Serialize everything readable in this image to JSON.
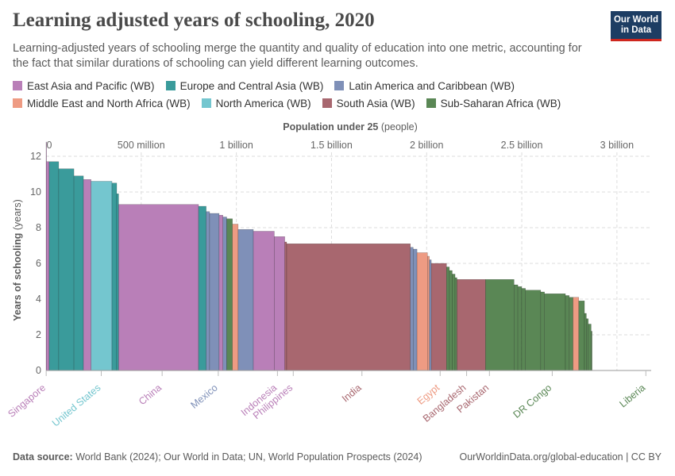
{
  "header": {
    "title": "Learning adjusted years of schooling, 2020",
    "subtitle": "Learning-adjusted years of schooling merge the quantity and quality of education into one metric, accounting for the fact that similar durations of schooling can yield different learning outcomes.",
    "logo_line1": "Our World",
    "logo_line2": "in Data"
  },
  "legend": [
    {
      "name": "East Asia and Pacific (WB)",
      "color": "#b97fb8"
    },
    {
      "name": "Europe and Central Asia (WB)",
      "color": "#3a9b9b"
    },
    {
      "name": "Latin America and Caribbean (WB)",
      "color": "#7f90b8"
    },
    {
      "name": "Middle East and North Africa (WB)",
      "color": "#ee9b83"
    },
    {
      "name": "North America (WB)",
      "color": "#74c6cf"
    },
    {
      "name": "South Asia (WB)",
      "color": "#a8676f"
    },
    {
      "name": "Sub-Saharan Africa (WB)",
      "color": "#5a8755"
    }
  ],
  "chart_data": {
    "type": "variable-width bar (marimekko)",
    "title": "Learning adjusted years of schooling, 2020",
    "xlabel_bold": "Population under 25",
    "xlabel_unit": "(people)",
    "ylabel_bold": "Years of schooling",
    "ylabel_unit": "(years)",
    "xlim": [
      0,
      3180000000
    ],
    "ylim": [
      0,
      12
    ],
    "x_ticks": [
      {
        "value": 0,
        "label": "0"
      },
      {
        "value": 500000000,
        "label": "500 million"
      },
      {
        "value": 1000000000,
        "label": "1 billion"
      },
      {
        "value": 1500000000,
        "label": "1.5 billion"
      },
      {
        "value": 2000000000,
        "label": "2 billion"
      },
      {
        "value": 2500000000,
        "label": "2.5 billion"
      },
      {
        "value": 3000000000,
        "label": "3 billion"
      }
    ],
    "y_ticks": [
      0,
      2,
      4,
      6,
      8,
      10,
      12
    ],
    "grid": true,
    "bars": [
      {
        "region": "East Asia and Pacific (WB)",
        "value": 12.8,
        "pop": 1400000
      },
      {
        "region": "East Asia and Pacific (WB)",
        "value": 11.7,
        "pop": 15000000
      },
      {
        "region": "Europe and Central Asia (WB)",
        "value": 11.7,
        "pop": 50000000
      },
      {
        "region": "Europe and Central Asia (WB)",
        "value": 11.3,
        "pop": 80000000
      },
      {
        "region": "Europe and Central Asia (WB)",
        "value": 10.9,
        "pop": 50000000
      },
      {
        "region": "East Asia and Pacific (WB)",
        "value": 10.7,
        "pop": 40000000
      },
      {
        "region": "North America (WB)",
        "value": 10.6,
        "pop": 110000000
      },
      {
        "region": "Europe and Central Asia (WB)",
        "value": 10.5,
        "pop": 25000000
      },
      {
        "region": "Europe and Central Asia (WB)",
        "value": 9.9,
        "pop": 10000000
      },
      {
        "region": "East Asia and Pacific (WB)",
        "value": 9.3,
        "pop": 420000000
      },
      {
        "region": "Europe and Central Asia (WB)",
        "value": 9.2,
        "pop": 40000000
      },
      {
        "region": "Latin America and Caribbean (WB)",
        "value": 8.9,
        "pop": 18000000
      },
      {
        "region": "Latin America and Caribbean (WB)",
        "value": 8.8,
        "pop": 50000000
      },
      {
        "region": "East Asia and Pacific (WB)",
        "value": 8.7,
        "pop": 20000000
      },
      {
        "region": "Latin America and Caribbean (WB)",
        "value": 8.6,
        "pop": 20000000
      },
      {
        "region": "Sub-Saharan Africa (WB)",
        "value": 8.5,
        "pop": 30000000
      },
      {
        "region": "Middle East and North Africa (WB)",
        "value": 8.2,
        "pop": 30000000
      },
      {
        "region": "Latin America and Caribbean (WB)",
        "value": 7.9,
        "pop": 80000000
      },
      {
        "region": "East Asia and Pacific (WB)",
        "value": 7.8,
        "pop": 110000000
      },
      {
        "region": "East Asia and Pacific (WB)",
        "value": 7.5,
        "pop": 55000000
      },
      {
        "region": "South Asia (WB)",
        "value": 7.2,
        "pop": 10000000
      },
      {
        "region": "South Asia (WB)",
        "value": 7.1,
        "pop": 650000000
      },
      {
        "region": "Latin America and Caribbean (WB)",
        "value": 6.9,
        "pop": 15000000
      },
      {
        "region": "Latin America and Caribbean (WB)",
        "value": 6.8,
        "pop": 20000000
      },
      {
        "region": "Middle East and North Africa (WB)",
        "value": 6.6,
        "pop": 55000000
      },
      {
        "region": "Middle East and North Africa (WB)",
        "value": 6.4,
        "pop": 10000000
      },
      {
        "region": "Latin America and Caribbean (WB)",
        "value": 6.2,
        "pop": 10000000
      },
      {
        "region": "South Asia (WB)",
        "value": 6.0,
        "pop": 80000000
      },
      {
        "region": "Sub-Saharan Africa (WB)",
        "value": 5.8,
        "pop": 15000000
      },
      {
        "region": "Sub-Saharan Africa (WB)",
        "value": 5.6,
        "pop": 15000000
      },
      {
        "region": "Sub-Saharan Africa (WB)",
        "value": 5.4,
        "pop": 15000000
      },
      {
        "region": "Sub-Saharan Africa (WB)",
        "value": 5.2,
        "pop": 10000000
      },
      {
        "region": "South Asia (WB)",
        "value": 5.1,
        "pop": 150000000
      },
      {
        "region": "Sub-Saharan Africa (WB)",
        "value": 5.1,
        "pop": 150000000
      },
      {
        "region": "Sub-Saharan Africa (WB)",
        "value": 4.8,
        "pop": 20000000
      },
      {
        "region": "Sub-Saharan Africa (WB)",
        "value": 4.7,
        "pop": 20000000
      },
      {
        "region": "Sub-Saharan Africa (WB)",
        "value": 4.6,
        "pop": 20000000
      },
      {
        "region": "Sub-Saharan Africa (WB)",
        "value": 4.5,
        "pop": 80000000
      },
      {
        "region": "Sub-Saharan Africa (WB)",
        "value": 4.4,
        "pop": 20000000
      },
      {
        "region": "Sub-Saharan Africa (WB)",
        "value": 4.3,
        "pop": 110000000
      },
      {
        "region": "Sub-Saharan Africa (WB)",
        "value": 4.2,
        "pop": 20000000
      },
      {
        "region": "Sub-Saharan Africa (WB)",
        "value": 4.1,
        "pop": 20000000
      },
      {
        "region": "Middle East and North Africa (WB)",
        "value": 4.1,
        "pop": 30000000
      },
      {
        "region": "Sub-Saharan Africa (WB)",
        "value": 3.9,
        "pop": 30000000
      },
      {
        "region": "Sub-Saharan Africa (WB)",
        "value": 3.2,
        "pop": 10000000
      },
      {
        "region": "Sub-Saharan Africa (WB)",
        "value": 2.9,
        "pop": 10000000
      },
      {
        "region": "Sub-Saharan Africa (WB)",
        "value": 2.6,
        "pop": 15000000
      },
      {
        "region": "Sub-Saharan Africa (WB)",
        "value": 2.2,
        "pop": 5000000
      }
    ],
    "country_labels": [
      {
        "name": "Singapore",
        "region": "East Asia and Pacific (WB)",
        "x": 700000
      },
      {
        "name": "United States",
        "region": "North America (WB)",
        "x": 290000000
      },
      {
        "name": "China",
        "region": "East Asia and Pacific (WB)",
        "x": 610000000
      },
      {
        "name": "Mexico",
        "region": "Latin America and Caribbean (WB)",
        "x": 905000000
      },
      {
        "name": "Indonesia",
        "region": "East Asia and Pacific (WB)",
        "x": 1216000000
      },
      {
        "name": "Philippines",
        "region": "East Asia and Pacific (WB)",
        "x": 1299000000
      },
      {
        "name": "India",
        "region": "South Asia (WB)",
        "x": 1660000000
      },
      {
        "name": "Egypt",
        "region": "Middle East and North Africa (WB)",
        "x": 2071000000
      },
      {
        "name": "Bangladesh",
        "region": "South Asia (WB)",
        "x": 2210000000
      },
      {
        "name": "Pakistan",
        "region": "South Asia (WB)",
        "x": 2330000000
      },
      {
        "name": "DR Congo",
        "region": "Sub-Saharan Africa (WB)",
        "x": 2660000000
      },
      {
        "name": "Liberia",
        "region": "Sub-Saharan Africa (WB)",
        "x": 3152000000
      }
    ]
  },
  "footer": {
    "source_label": "Data source:",
    "source_text": "World Bank (2024); Our World in Data; UN, World Population Prospects (2024)",
    "url_text": "OurWorldinData.org/global-education | CC BY"
  }
}
